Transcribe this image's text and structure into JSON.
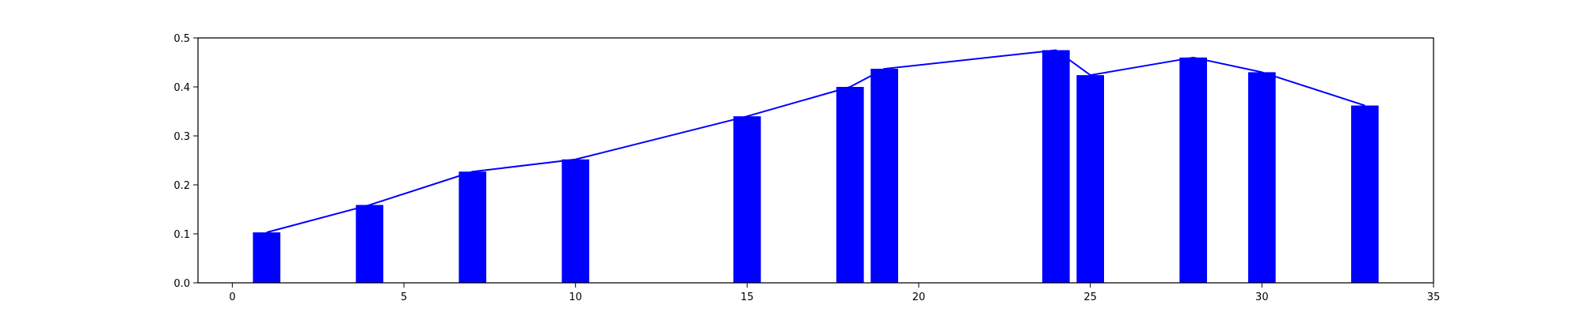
{
  "chart_data": {
    "type": "bar",
    "x": [
      1,
      4,
      7,
      10,
      15,
      18,
      19,
      24,
      25,
      28,
      30,
      33
    ],
    "values": [
      0.103,
      0.159,
      0.227,
      0.252,
      0.34,
      0.4,
      0.437,
      0.475,
      0.424,
      0.46,
      0.43,
      0.362
    ],
    "bar_width": 0.8,
    "line_overlay": true,
    "title": "",
    "xlabel": "",
    "ylabel": "",
    "xlim": [
      -1,
      35
    ],
    "ylim": [
      0,
      0.5
    ],
    "xticks": [
      0,
      5,
      10,
      15,
      20,
      25,
      30,
      35
    ],
    "yticks": [
      0.0,
      0.1,
      0.2,
      0.3,
      0.4,
      0.5
    ],
    "xtick_labels": [
      "0",
      "5",
      "10",
      "15",
      "20",
      "25",
      "30",
      "35"
    ],
    "ytick_labels": [
      "0.0",
      "0.1",
      "0.2",
      "0.3",
      "0.4",
      "0.5"
    ],
    "grid": false,
    "colors": {
      "bar": "#0000ff",
      "line": "#0000ff",
      "axes": "#000000"
    }
  }
}
